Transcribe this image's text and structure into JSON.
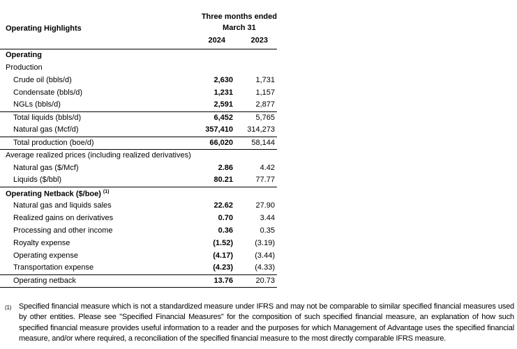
{
  "colors": {
    "text": "#000000",
    "background": "#ffffff",
    "rule": "#000000"
  },
  "table": {
    "title": "Operating Highlights",
    "period_line1": "Three months ended",
    "period_line2": "March 31",
    "col_headers": [
      "2024",
      "2023"
    ],
    "rows": [
      {
        "type": "section-bold",
        "label": "Operating",
        "v2024": "",
        "v2023": ""
      },
      {
        "type": "section",
        "label": "Production",
        "v2024": "",
        "v2023": ""
      },
      {
        "type": "item",
        "label": "Crude oil (bbls/d)",
        "v2024": "2,630",
        "v2023": "1,731"
      },
      {
        "type": "item",
        "label": "Condensate (bbls/d)",
        "v2024": "1,231",
        "v2023": "1,157"
      },
      {
        "type": "item",
        "label": "NGLs (bbls/d)",
        "v2024": "2,591",
        "v2023": "2,877",
        "underline": true
      },
      {
        "type": "item",
        "label": "Total liquids (bbls/d)",
        "v2024": "6,452",
        "v2023": "5,765"
      },
      {
        "type": "item",
        "label": "Natural gas (Mcf/d)",
        "v2024": "357,410",
        "v2023": "314,273",
        "underline": true
      },
      {
        "type": "item",
        "label": "Total production (boe/d)",
        "v2024": "66,020",
        "v2023": "58,144",
        "underline": true
      },
      {
        "type": "section",
        "label": "Average realized prices (including realized derivatives)",
        "v2024": "",
        "v2023": ""
      },
      {
        "type": "item",
        "label": "Natural gas ($/Mcf)",
        "v2024": "2.86",
        "v2023": "4.42"
      },
      {
        "type": "item",
        "label": "Liquids ($/bbl)",
        "v2024": "80.21",
        "v2023": "77.77",
        "underline": true
      },
      {
        "type": "section-bold",
        "label": "Operating Netback ($/boe)",
        "sup": "(1)",
        "v2024": "",
        "v2023": ""
      },
      {
        "type": "item",
        "label": "Natural gas and liquids sales",
        "v2024": "22.62",
        "v2023": "27.90"
      },
      {
        "type": "item",
        "label": "Realized gains on derivatives",
        "v2024": "0.70",
        "v2023": "3.44"
      },
      {
        "type": "item",
        "label": "Processing and other income",
        "v2024": "0.36",
        "v2023": "0.35"
      },
      {
        "type": "item",
        "label": "Royalty expense",
        "v2024": "(1.52)",
        "v2023": "(3.19)"
      },
      {
        "type": "item",
        "label": "Operating expense",
        "v2024": "(4.17)",
        "v2023": "(3.44)"
      },
      {
        "type": "item",
        "label": "Transportation expense",
        "v2024": "(4.23)",
        "v2023": "(4.33)",
        "underline": true
      },
      {
        "type": "item",
        "label": "Operating netback",
        "v2024": "13.76",
        "v2023": "20.73",
        "underline": true
      }
    ]
  },
  "footnote": {
    "marker": "(1)",
    "text": "Specified financial measure which is not a standardized measure under IFRS and may not be comparable to similar specified financial measures used by other entities. Please see \"Specified Financial Measures\" for the composition of such specified financial measure, an explanation of how such specified financial measure provides useful information to a reader and the purposes for which Management of Advantage uses the specified financial measure, and/or where required, a reconciliation of the specified financial measure to the most directly comparable IFRS measure."
  }
}
